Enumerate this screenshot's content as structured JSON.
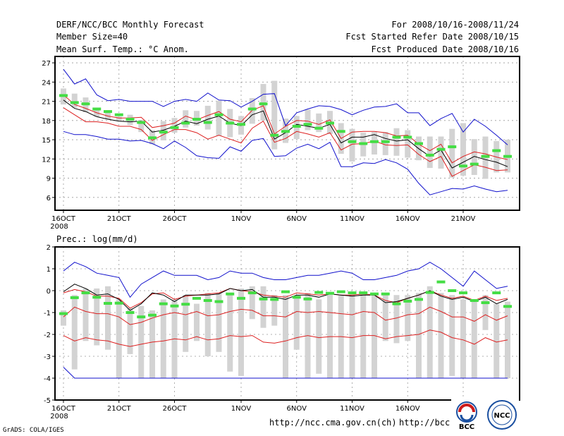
{
  "header": {
    "title": "DERF/NCC/BCC Monthly Forecast",
    "member_size": "Member Size=40",
    "variable": "Mean Surf. Temp.: °C Anom.",
    "period": "For 2008/10/16-2008/11/24",
    "start_date": "Fcst Started Refer Date 2008/10/15",
    "produced_date": "Fcst Produced Date 2008/10/16"
  },
  "footer": {
    "grads_label": "GrADS: COLA/IGES",
    "url1": "http://ncc.cma.gov.cn(ch)",
    "url2": "http://bcc."
  },
  "logos": {
    "bcc_label": "BCC",
    "ncc_label": "NCC"
  },
  "colors": {
    "gray_bar": "#d3d3d3",
    "median": "#44dd44",
    "mean": "#000000",
    "spread": "#dd2020",
    "extreme": "#1010cc"
  },
  "chart_data": [
    {
      "type": "line",
      "title": "Mean Surf. Temp.: °C Anom.",
      "x_days": 40,
      "xticks": [
        {
          "day": 0,
          "label": "16OCT",
          "sub": "2008"
        },
        {
          "day": 5,
          "label": "21OCT"
        },
        {
          "day": 10,
          "label": "26OCT"
        },
        {
          "day": 16,
          "label": "1NOV"
        },
        {
          "day": 21,
          "label": "6NOV"
        },
        {
          "day": 26,
          "label": "11NOV"
        },
        {
          "day": 31,
          "label": "16NOV"
        },
        {
          "day": 36,
          "label": "21NOV"
        }
      ],
      "ylim": [
        4,
        28
      ],
      "yticks": [
        6,
        9,
        12,
        15,
        18,
        21,
        24,
        27
      ],
      "box_low": [
        20.5,
        20,
        19.3,
        18.6,
        18.2,
        17.9,
        17.3,
        16.2,
        14.3,
        14.9,
        16.1,
        16.9,
        17.2,
        16.6,
        15.6,
        15.4,
        15.8,
        17.5,
        18,
        13.5,
        14.5,
        15.1,
        16.5,
        16.2,
        15.9,
        12.8,
        11.6,
        12.4,
        12.7,
        12.6,
        12.5,
        12.2,
        11.8,
        10.6,
        10.5,
        9.1,
        9.4,
        9.5,
        8.9,
        9.9,
        9.9
      ],
      "box_high": [
        23,
        22.2,
        21.6,
        20,
        19.5,
        18.6,
        18.9,
        18.1,
        16.5,
        17.9,
        18.4,
        19.6,
        19.5,
        20.3,
        21.1,
        19.8,
        18.7,
        21.5,
        23.7,
        24.2,
        18.3,
        18.7,
        19.7,
        19.1,
        19.5,
        17.6,
        16.7,
        16.1,
        16.2,
        16.2,
        16.8,
        16.5,
        15.5,
        15.5,
        15.5,
        16.7,
        17.6,
        15.1,
        15.5,
        14.8,
        15
      ],
      "median": [
        21.9,
        20.8,
        20.6,
        19.8,
        19.4,
        18.9,
        18.2,
        17.7,
        15.3,
        16.2,
        16.9,
        17.6,
        18.2,
        17.7,
        18.9,
        17.6,
        17.4,
        19.8,
        20.6,
        15.7,
        16.3,
        17.1,
        17.4,
        16.8,
        17.6,
        16.3,
        14.7,
        14.4,
        14.7,
        14.7,
        15.4,
        15.4,
        14.4,
        12.6,
        13.5,
        13.9,
        10.9,
        11.2,
        12.4,
        13.3,
        12.4
      ],
      "mean": [
        21.2,
        19.9,
        19.4,
        18.6,
        18.2,
        17.9,
        17.8,
        17.9,
        16.2,
        16.5,
        17.1,
        17.9,
        17.5,
        18.2,
        18.7,
        17.6,
        17.2,
        18.9,
        19.5,
        15.1,
        16.1,
        17.4,
        17.1,
        16.8,
        17.4,
        14.5,
        15.4,
        15.4,
        15.8,
        15.2,
        14.8,
        15.0,
        13.6,
        12.4,
        13.4,
        10.6,
        11.5,
        12.4,
        11.9,
        11.5,
        10.8
      ],
      "spread_upper": [
        22,
        20.5,
        19.9,
        19.2,
        18.7,
        18.4,
        18.4,
        18.5,
        16.9,
        17.2,
        17.6,
        18.7,
        18.1,
        18.8,
        19.4,
        18.2,
        17.8,
        19.6,
        20.3,
        15.9,
        17.1,
        18.0,
        17.9,
        17.4,
        18.1,
        15.2,
        16.2,
        16.3,
        16.3,
        16.1,
        15.6,
        15.7,
        14.3,
        13.3,
        14.3,
        11.4,
        12.4,
        13.1,
        12.8,
        12.3,
        11.9
      ],
      "spread_lower": [
        20,
        18.9,
        17.8,
        17.8,
        17.6,
        17.1,
        17.1,
        16.6,
        14.9,
        15.8,
        16.6,
        16.6,
        16.1,
        15.1,
        15.7,
        15.1,
        14.5,
        16.8,
        17.9,
        14.6,
        15.2,
        16.3,
        15.9,
        15.4,
        16.1,
        13.4,
        14.3,
        14.4,
        14.8,
        14.2,
        14.1,
        14.2,
        12.7,
        11.6,
        12.4,
        9.3,
        10.2,
        11.1,
        10.7,
        10.2,
        10.3
      ],
      "max": [
        26,
        23.7,
        24.5,
        22,
        21.1,
        21.3,
        21.0,
        21.0,
        21.0,
        20.2,
        21.0,
        21.3,
        21.0,
        22.3,
        21.2,
        21.1,
        20.1,
        21.0,
        22.1,
        22.2,
        17.2,
        19.2,
        19.8,
        20.3,
        20.2,
        19.7,
        18.9,
        19.6,
        20.1,
        20.2,
        20.6,
        19.2,
        19.2,
        17.2,
        18.3,
        19.1,
        16.2,
        18.2,
        17.1,
        15.7,
        14.2
      ],
      "min": [
        16.3,
        15.8,
        15.8,
        15.5,
        15.1,
        15.1,
        14.8,
        14.9,
        14.4,
        13.6,
        14.8,
        13.8,
        12.5,
        12.2,
        12.1,
        13.9,
        13.2,
        14.9,
        15.2,
        12.4,
        12.5,
        13.7,
        14.3,
        13.6,
        14.6,
        10.8,
        10.8,
        11.4,
        11.3,
        11.9,
        11.4,
        10.4,
        8.2,
        6.4,
        6.9,
        7.4,
        7.3,
        7.8,
        7.3,
        6.9,
        7.1
      ]
    },
    {
      "type": "line",
      "title": "Prec.: log(mm/d)",
      "x_days": 40,
      "xticks": [
        {
          "day": 0,
          "label": "16OCT",
          "sub": "2008"
        },
        {
          "day": 5,
          "label": "21OCT"
        },
        {
          "day": 10,
          "label": "26OCT"
        },
        {
          "day": 16,
          "label": "1NOV"
        },
        {
          "day": 21,
          "label": "6NOV"
        },
        {
          "day": 26,
          "label": "11NOV"
        },
        {
          "day": 31,
          "label": "16NOV"
        },
        {
          "day": 36,
          "label": "21NOV"
        }
      ],
      "ylim": [
        -5,
        2
      ],
      "yticks": [
        -5,
        -4,
        -3,
        -2,
        -1,
        0,
        1,
        2
      ],
      "box_low": [
        -1.6,
        -3.6,
        -2.3,
        -2.5,
        -2.7,
        -4.0,
        -2.9,
        -4.0,
        -4.0,
        -4.0,
        -4.0,
        -2.8,
        -2.3,
        -3.0,
        -2.8,
        -3.7,
        -3.9,
        -1.3,
        -1.7,
        -1.6,
        -4.0,
        -2.7,
        -4.0,
        -3.8,
        -4.0,
        -4.0,
        -4.0,
        -4.0,
        -4.0,
        -2.3,
        -2.4,
        -2.3,
        -4.0,
        -4.0,
        -4.0,
        -3.9,
        -4.0,
        -4.0,
        -1.8,
        -4.0,
        -4.0
      ],
      "box_high": [
        -0.9,
        -0.2,
        0.1,
        0.1,
        0.2,
        -0.4,
        -0.8,
        -0.7,
        -0.9,
        -0.4,
        -0.4,
        -0.2,
        -0.6,
        -0.1,
        -0.1,
        -0.1,
        0.1,
        0.2,
        0.2,
        -0.2,
        -0.2,
        -0.2,
        -0.1,
        -0.4,
        -0.1,
        -0.2,
        -0.1,
        -0.1,
        -0.1,
        -0.2,
        -0.2,
        -0.2,
        -0.1,
        0.2,
        -0.1,
        -0.2,
        -0.4,
        -0.5,
        -0.2,
        -0.6,
        -0.5
      ],
      "median": [
        -1.05,
        -0.32,
        -0.1,
        -0.3,
        -0.58,
        -0.57,
        -1.0,
        -1.2,
        -1.12,
        -0.6,
        -0.7,
        -0.62,
        -0.35,
        -0.45,
        -0.5,
        -0.15,
        -0.35,
        -0.1,
        -0.38,
        -0.4,
        -0.05,
        -0.3,
        -0.38,
        -0.08,
        -0.12,
        -0.05,
        -0.1,
        -0.1,
        -0.15,
        -0.15,
        -0.6,
        -0.48,
        -0.4,
        -0.08,
        0.4,
        0.0,
        -0.1,
        -0.45,
        -0.55,
        -0.1,
        -0.72
      ],
      "mean": [
        -0.05,
        0.3,
        0.1,
        -0.2,
        -0.15,
        -0.4,
        -0.9,
        -0.6,
        -0.1,
        -0.2,
        -0.5,
        -0.2,
        -0.2,
        -0.2,
        -0.15,
        0.1,
        0.0,
        0.05,
        -0.3,
        -0.3,
        -0.4,
        -0.2,
        -0.2,
        -0.3,
        -0.15,
        -0.2,
        -0.25,
        -0.2,
        -0.2,
        -0.55,
        -0.5,
        -0.35,
        -0.2,
        0.0,
        -0.25,
        -0.4,
        -0.3,
        -0.5,
        -0.3,
        -0.6,
        -0.4
      ],
      "spread_upper": [
        -0.1,
        0.05,
        -0.05,
        -0.25,
        -0.25,
        -0.35,
        -0.8,
        -0.55,
        -0.15,
        -0.1,
        -0.4,
        -0.25,
        -0.2,
        -0.15,
        -0.1,
        0.1,
        0.0,
        -0.05,
        -0.2,
        -0.25,
        -0.3,
        -0.1,
        -0.15,
        -0.2,
        -0.15,
        -0.2,
        -0.2,
        -0.15,
        -0.2,
        -0.45,
        -0.55,
        -0.35,
        -0.2,
        0.0,
        -0.2,
        -0.35,
        -0.25,
        -0.45,
        -0.25,
        -0.45,
        -0.35
      ],
      "spread_lower": [
        -1.2,
        -0.75,
        -0.95,
        -1.05,
        -1.05,
        -1.2,
        -1.55,
        -1.45,
        -1.25,
        -1.1,
        -1.0,
        -1.1,
        -0.95,
        -1.15,
        -1.1,
        -0.95,
        -0.85,
        -0.9,
        -1.15,
        -1.15,
        -1.2,
        -0.95,
        -1.0,
        -0.95,
        -1.0,
        -1.05,
        -1.1,
        -0.95,
        -1.0,
        -1.35,
        -1.25,
        -1.1,
        -1.05,
        -0.75,
        -0.95,
        -1.2,
        -1.2,
        -1.4,
        -1.1,
        -1.35,
        -1.15
      ],
      "low_line": [
        -2.05,
        -2.3,
        -2.15,
        -2.25,
        -2.3,
        -2.45,
        -2.55,
        -2.45,
        -2.35,
        -2.3,
        -2.2,
        -2.25,
        -2.1,
        -2.25,
        -2.2,
        -2.05,
        -2.1,
        -2.05,
        -2.35,
        -2.4,
        -2.3,
        -2.15,
        -2.05,
        -2.15,
        -2.1,
        -2.1,
        -2.15,
        -2.05,
        -2.05,
        -2.2,
        -2.1,
        -2.05,
        -2.0,
        -1.8,
        -1.9,
        -2.15,
        -2.25,
        -2.45,
        -2.15,
        -2.35,
        -2.25
      ],
      "max": [
        0.9,
        1.3,
        1.1,
        0.8,
        0.7,
        0.6,
        -0.3,
        0.3,
        0.6,
        0.9,
        0.7,
        0.7,
        0.7,
        0.5,
        0.6,
        0.9,
        0.8,
        0.8,
        0.6,
        0.5,
        0.5,
        0.6,
        0.7,
        0.7,
        0.8,
        0.9,
        0.8,
        0.5,
        0.5,
        0.6,
        0.7,
        0.9,
        1.0,
        1.3,
        1.0,
        0.6,
        0.2,
        0.9,
        0.5,
        0.1,
        0.2
      ],
      "min": [
        -3.5,
        -4.0,
        -4.0,
        -4.0,
        -4.0,
        -4.0,
        -4.0,
        -4.0,
        -4.0,
        -4.0,
        -4.0,
        -4.0,
        -4.0,
        -4.0,
        -4.0,
        -4.0,
        -4.0,
        -4.0,
        -4.0,
        -4.0,
        -4.0,
        -4.0,
        -4.0,
        -4.0,
        -4.0,
        -4.0,
        -4.0,
        -4.0,
        -4.0,
        -4.0,
        -4.0,
        -4.0,
        -4.0,
        -4.0,
        -4.0,
        -4.0,
        -4.0,
        -4.0,
        -4.0,
        -4.0,
        -4.0
      ]
    }
  ]
}
